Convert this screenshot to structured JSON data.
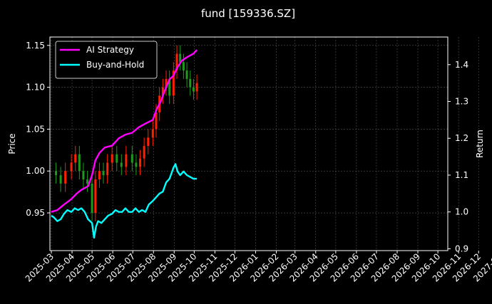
{
  "chart_data": {
    "type": "line",
    "title": "fund [159336.SZ]",
    "ylabel_left": "Price",
    "ylabel_right": "Return",
    "xlabel": "",
    "ylim_left": [
      0.905,
      1.16
    ],
    "ylim_right": [
      0.895,
      1.475
    ],
    "left_ticks": [
      "0.95",
      "1.00",
      "1.05",
      "1.10",
      "1.15"
    ],
    "right_ticks": [
      "0.9",
      "1.0",
      "1.1",
      "1.2",
      "1.3",
      "1.4"
    ],
    "x_ticks": [
      "2025-03",
      "2025-04",
      "2025-05",
      "2025-06",
      "2025-07",
      "2025-08",
      "2025-09",
      "2025-10",
      "2025-11",
      "2025-12",
      "2026-01",
      "2026-02",
      "2026-03",
      "2026-04",
      "2026-05",
      "2026-06",
      "2026-07",
      "2026-08",
      "2026-09",
      "2026-10",
      "2026-11",
      "2026-12",
      "2027-01",
      "2027-02"
    ],
    "grid": true,
    "legend_position": "top-left",
    "background": "#000000",
    "series": [
      {
        "name": "AI Strategy",
        "axis": "right",
        "color": "#ff00ff",
        "x": [
          "2025-03-01",
          "2025-03-10",
          "2025-03-20",
          "2025-03-31",
          "2025-04-08",
          "2025-04-15",
          "2025-04-25",
          "2025-05-01",
          "2025-05-06",
          "2025-05-12",
          "2025-05-20",
          "2025-05-31",
          "2025-06-10",
          "2025-06-20",
          "2025-06-30",
          "2025-07-10",
          "2025-07-20",
          "2025-07-31",
          "2025-08-06",
          "2025-08-12",
          "2025-08-18",
          "2025-08-25",
          "2025-08-31",
          "2025-09-05",
          "2025-09-12",
          "2025-09-20",
          "2025-09-30",
          "2025-10-05"
        ],
        "values": [
          1.0,
          1.005,
          1.02,
          1.035,
          1.05,
          1.06,
          1.07,
          1.1,
          1.14,
          1.16,
          1.175,
          1.18,
          1.2,
          1.21,
          1.215,
          1.23,
          1.24,
          1.25,
          1.28,
          1.3,
          1.33,
          1.36,
          1.37,
          1.39,
          1.41,
          1.42,
          1.43,
          1.44
        ]
      },
      {
        "name": "Buy-and-Hold",
        "axis": "right",
        "color": "#00ffff",
        "x": [
          "2025-03-01",
          "2025-03-05",
          "2025-03-10",
          "2025-03-15",
          "2025-03-20",
          "2025-03-25",
          "2025-03-31",
          "2025-04-05",
          "2025-04-10",
          "2025-04-15",
          "2025-04-20",
          "2025-04-25",
          "2025-05-01",
          "2025-05-04",
          "2025-05-07",
          "2025-05-10",
          "2025-05-15",
          "2025-05-20",
          "2025-05-25",
          "2025-05-31",
          "2025-06-05",
          "2025-06-10",
          "2025-06-15",
          "2025-06-20",
          "2025-06-25",
          "2025-06-30",
          "2025-07-05",
          "2025-07-10",
          "2025-07-15",
          "2025-07-20",
          "2025-07-25",
          "2025-07-31",
          "2025-08-05",
          "2025-08-10",
          "2025-08-15",
          "2025-08-20",
          "2025-08-25",
          "2025-08-31",
          "2025-09-03",
          "2025-09-06",
          "2025-09-10",
          "2025-09-15",
          "2025-09-20",
          "2025-09-25",
          "2025-09-30",
          "2025-10-05"
        ],
        "values": [
          0.99,
          0.985,
          0.975,
          0.98,
          0.995,
          1.005,
          1.0,
          1.01,
          1.005,
          1.01,
          1.0,
          0.98,
          0.97,
          0.93,
          0.96,
          0.975,
          0.97,
          0.98,
          0.99,
          0.995,
          1.005,
          1.0,
          1.0,
          1.01,
          1.0,
          1.0,
          1.01,
          1.0,
          1.005,
          1.0,
          1.02,
          1.03,
          1.04,
          1.05,
          1.055,
          1.08,
          1.09,
          1.12,
          1.13,
          1.11,
          1.1,
          1.11,
          1.1,
          1.095,
          1.09,
          1.09
        ]
      },
      {
        "name": "",
        "axis": "left",
        "type": "candlestick",
        "color": "#ff2000",
        "x": [
          "2025-03-01",
          "2025-03-08",
          "2025-03-15",
          "2025-03-22",
          "2025-03-31",
          "2025-04-06",
          "2025-04-12",
          "2025-04-18",
          "2025-04-24",
          "2025-05-01",
          "2025-05-06",
          "2025-05-12",
          "2025-05-18",
          "2025-05-24",
          "2025-05-31",
          "2025-06-07",
          "2025-06-14",
          "2025-06-21",
          "2025-06-30",
          "2025-07-06",
          "2025-07-12",
          "2025-07-18",
          "2025-07-24",
          "2025-07-31",
          "2025-08-05",
          "2025-08-10",
          "2025-08-15",
          "2025-08-20",
          "2025-08-25",
          "2025-08-31",
          "2025-09-05",
          "2025-09-10",
          "2025-09-15",
          "2025-09-20",
          "2025-09-25",
          "2025-09-30",
          "2025-10-05"
        ],
        "values": [
          1.0,
          0.995,
          0.985,
          1.0,
          1.01,
          1.02,
          1.0,
          0.99,
          0.985,
          0.95,
          0.99,
          1.0,
          0.995,
          1.01,
          1.02,
          1.01,
          1.005,
          1.02,
          1.01,
          1.005,
          1.015,
          1.03,
          1.04,
          1.05,
          1.07,
          1.09,
          1.1,
          1.11,
          1.09,
          1.12,
          1.14,
          1.13,
          1.12,
          1.11,
          1.1,
          1.095,
          1.105
        ]
      }
    ]
  }
}
